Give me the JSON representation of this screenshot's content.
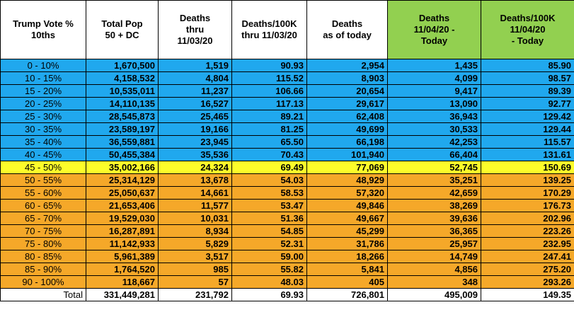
{
  "table": {
    "headers": [
      "Trump Vote %\n10ths",
      "Total Pop\n50 + DC",
      "Deaths\nthru\n11/03/20",
      "Deaths/100K\nthru 11/03/20",
      "Deaths\nas of today",
      "Deaths\n11/04/20 -\nToday",
      "Deaths/100K\n11/04/20\n- Today"
    ],
    "colors": {
      "blue": "#20a8ee",
      "yellow": "#fdfd2a",
      "orange": "#f5a829",
      "green_header": "#92d050"
    },
    "rows": [
      {
        "band": "blue",
        "cells": [
          "0 - 10%",
          "1,670,500",
          "1,519",
          "90.93",
          "2,954",
          "1,435",
          "85.90"
        ]
      },
      {
        "band": "blue",
        "cells": [
          "10 - 15%",
          "4,158,532",
          "4,804",
          "115.52",
          "8,903",
          "4,099",
          "98.57"
        ]
      },
      {
        "band": "blue",
        "cells": [
          "15 - 20%",
          "10,535,011",
          "11,237",
          "106.66",
          "20,654",
          "9,417",
          "89.39"
        ]
      },
      {
        "band": "blue",
        "cells": [
          "20 - 25%",
          "14,110,135",
          "16,527",
          "117.13",
          "29,617",
          "13,090",
          "92.77"
        ]
      },
      {
        "band": "blue",
        "cells": [
          "25 - 30%",
          "28,545,873",
          "25,465",
          "89.21",
          "62,408",
          "36,943",
          "129.42"
        ]
      },
      {
        "band": "blue",
        "cells": [
          "30 - 35%",
          "23,589,197",
          "19,166",
          "81.25",
          "49,699",
          "30,533",
          "129.44"
        ]
      },
      {
        "band": "blue",
        "cells": [
          "35 - 40%",
          "36,559,881",
          "23,945",
          "65.50",
          "66,198",
          "42,253",
          "115.57"
        ]
      },
      {
        "band": "blue",
        "cells": [
          "40 - 45%",
          "50,455,384",
          "35,536",
          "70.43",
          "101,940",
          "66,404",
          "131.61"
        ]
      },
      {
        "band": "yellow",
        "cells": [
          "45 - 50%",
          "35,002,166",
          "24,324",
          "69.49",
          "77,069",
          "52,745",
          "150.69"
        ]
      },
      {
        "band": "orange",
        "cells": [
          "50 - 55%",
          "25,314,129",
          "13,678",
          "54.03",
          "48,929",
          "35,251",
          "139.25"
        ]
      },
      {
        "band": "orange",
        "cells": [
          "55 - 60%",
          "25,050,637",
          "14,661",
          "58.53",
          "57,320",
          "42,659",
          "170.29"
        ]
      },
      {
        "band": "orange",
        "cells": [
          "60 - 65%",
          "21,653,406",
          "11,577",
          "53.47",
          "49,846",
          "38,269",
          "176.73"
        ]
      },
      {
        "band": "orange",
        "cells": [
          "65 - 70%",
          "19,529,030",
          "10,031",
          "51.36",
          "49,667",
          "39,636",
          "202.96"
        ]
      },
      {
        "band": "orange",
        "cells": [
          "70 - 75%",
          "16,287,891",
          "8,934",
          "54.85",
          "45,299",
          "36,365",
          "223.26"
        ]
      },
      {
        "band": "orange",
        "cells": [
          "75 - 80%",
          "11,142,933",
          "5,829",
          "52.31",
          "31,786",
          "25,957",
          "232.95"
        ]
      },
      {
        "band": "orange",
        "cells": [
          "80 - 85%",
          "5,961,389",
          "3,517",
          "59.00",
          "18,266",
          "14,749",
          "247.41"
        ]
      },
      {
        "band": "orange",
        "cells": [
          "85 - 90%",
          "1,764,520",
          "985",
          "55.82",
          "5,841",
          "4,856",
          "275.20"
        ]
      },
      {
        "band": "orange",
        "cells": [
          "90 - 100%",
          "118,667",
          "57",
          "48.03",
          "405",
          "348",
          "293.26"
        ]
      },
      {
        "band": "total",
        "cells": [
          "Total",
          "331,449,281",
          "231,792",
          "69.93",
          "726,801",
          "495,009",
          "149.35"
        ]
      }
    ]
  }
}
